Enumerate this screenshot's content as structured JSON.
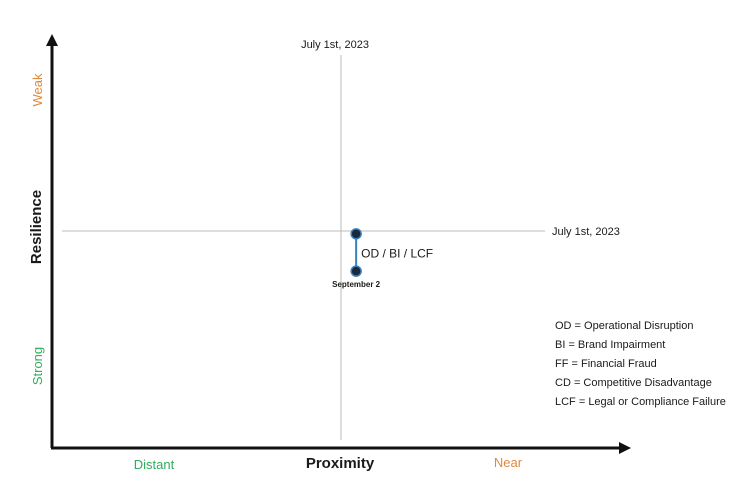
{
  "chart_data": {
    "type": "scatter",
    "xlabel": "Proximity",
    "ylabel": "Resilience",
    "x_low_label": "Distant",
    "x_high_label": "Near",
    "y_low_label": "Strong",
    "y_high_label": "Weak",
    "vertical_reference_label": "July 1st, 2023",
    "horizontal_reference_label": "July 1st, 2023",
    "points": [
      {
        "id": "july",
        "x": 0.555,
        "y": 0.545,
        "label": ""
      },
      {
        "id": "sept",
        "x": 0.555,
        "y": 0.45,
        "label": "September 2"
      }
    ],
    "segment_label": "OD / BI / LCF",
    "legend": [
      "OD = Operational Disruption",
      "BI = Brand Impairment",
      "FF = Financial Fraud",
      "CD = Competitive Disadvantage",
      "LCF = Legal or Compliance Failure"
    ],
    "colors": {
      "axis": "#111111",
      "reference_line": "#bbbbbb",
      "segment": "#3a7fc1",
      "point_fill": "#1b2a3a",
      "near": "#e08a3c",
      "distant": "#2fae5c",
      "weak": "#e08a3c",
      "strong": "#2fae5c"
    }
  }
}
